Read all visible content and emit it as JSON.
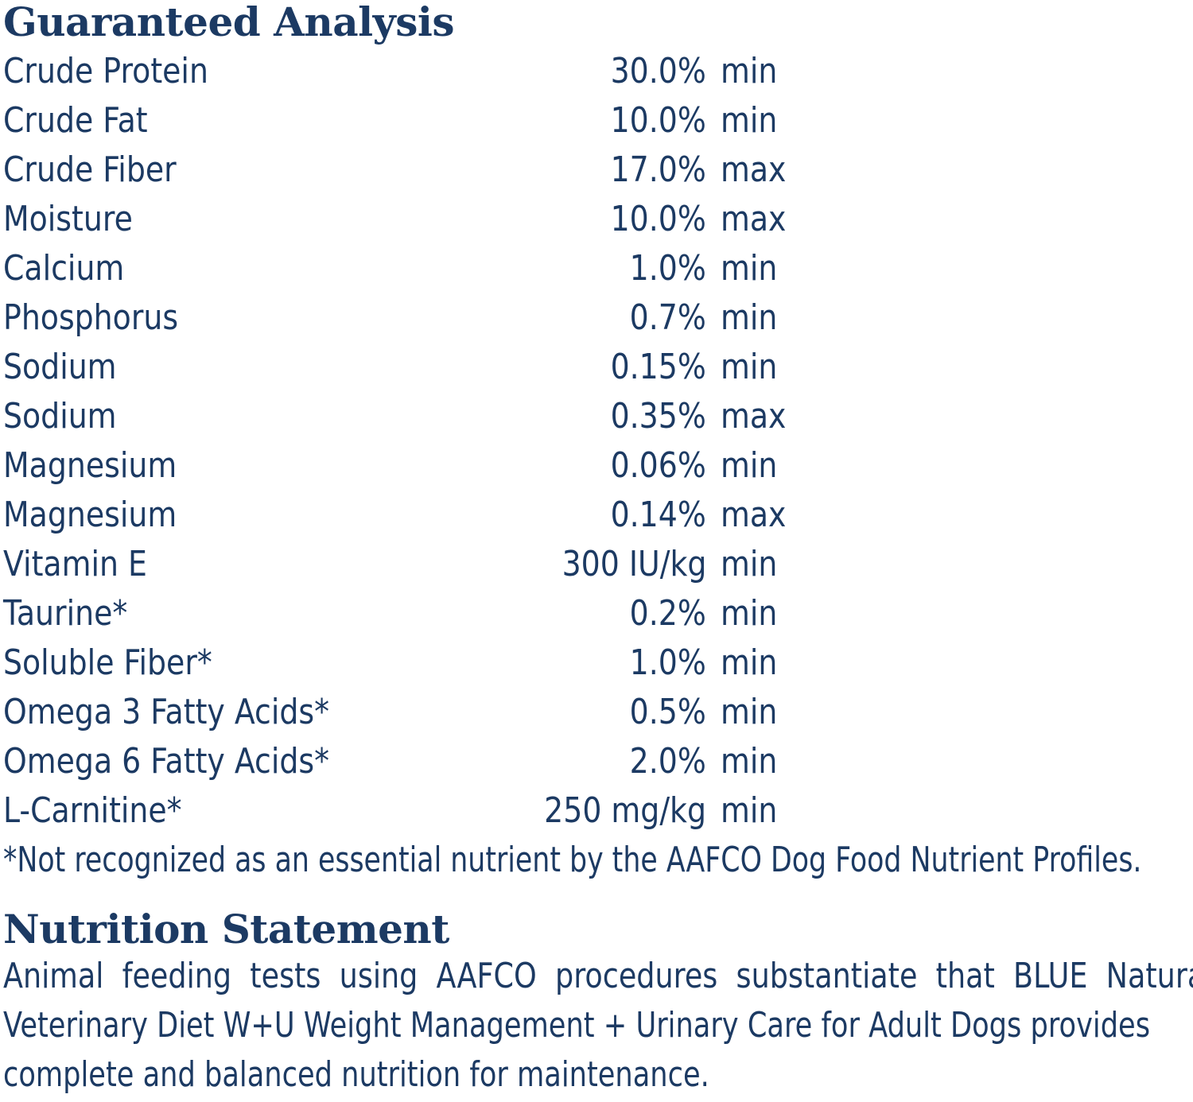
{
  "guaranteed_analysis": {
    "title": "Guaranteed Analysis",
    "rows": [
      {
        "name": "Crude Protein",
        "amount": "30.0%",
        "qualifier": "min"
      },
      {
        "name": "Crude Fat",
        "amount": "10.0%",
        "qualifier": "min"
      },
      {
        "name": "Crude Fiber",
        "amount": "17.0%",
        "qualifier": "max"
      },
      {
        "name": "Moisture",
        "amount": "10.0%",
        "qualifier": "max"
      },
      {
        "name": "Calcium",
        "amount": "1.0%",
        "qualifier": "min"
      },
      {
        "name": "Phosphorus",
        "amount": "0.7%",
        "qualifier": "min"
      },
      {
        "name": "Sodium",
        "amount": "0.15%",
        "qualifier": "min"
      },
      {
        "name": "Sodium",
        "amount": "0.35%",
        "qualifier": "max"
      },
      {
        "name": "Magnesium",
        "amount": "0.06%",
        "qualifier": "min"
      },
      {
        "name": "Magnesium",
        "amount": "0.14%",
        "qualifier": "max"
      },
      {
        "name": "Vitamin E",
        "amount": "300 IU/kg",
        "qualifier": "min"
      },
      {
        "name": "Taurine*",
        "amount": "0.2%",
        "qualifier": "min"
      },
      {
        "name": "Soluble Fiber*",
        "amount": "1.0%",
        "qualifier": "min"
      },
      {
        "name": "Omega 3 Fatty Acids*",
        "amount": "0.5%",
        "qualifier": "min"
      },
      {
        "name": "Omega 6 Fatty Acids*",
        "amount": "2.0%",
        "qualifier": "min"
      },
      {
        "name": "L-Carnitine*",
        "amount": "250 mg/kg",
        "qualifier": "min"
      }
    ],
    "footnote": "*Not recognized as an essential nutrient by the AAFCO Dog Food Nutrient Profiles."
  },
  "nutrition_statement": {
    "title": "Nutrition Statement",
    "lines": [
      "Animal feeding tests using AAFCO procedures substantiate that BLUE Natural",
      "Veterinary Diet W+U Weight Management + Urinary Care for Adult Dogs provides",
      "complete and balanced nutrition for maintenance."
    ]
  },
  "colors": {
    "text": "#1c3a63",
    "background": "#ffffff"
  }
}
